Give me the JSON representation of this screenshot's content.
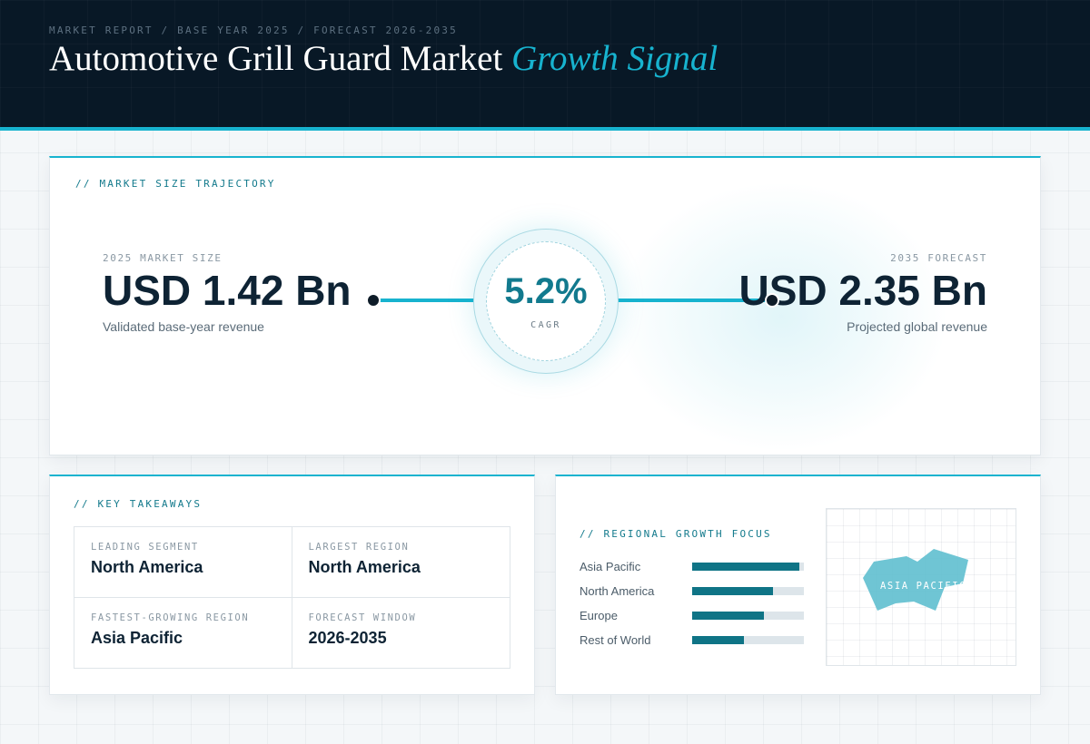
{
  "header": {
    "breadcrumb": "MARKET REPORT / BASE YEAR 2025 / FORECAST 2026-2035",
    "title_main": "Automotive Grill Guard Market",
    "title_accent": "Growth Signal"
  },
  "trajectory": {
    "section_label": "// MARKET SIZE TRAJECTORY",
    "start": {
      "caption": "2025 MARKET SIZE",
      "value": "USD 1.42 Bn",
      "note": "Validated base-year revenue"
    },
    "end": {
      "caption": "2035 FORECAST",
      "value": "USD 2.35 Bn",
      "note": "Projected global revenue"
    },
    "cagr": {
      "value": "5.2%",
      "label": "CAGR"
    }
  },
  "takeaways": {
    "section_label": "// KEY TAKEAWAYS",
    "cells": [
      {
        "label": "LEADING SEGMENT",
        "value": "North America"
      },
      {
        "label": "LARGEST REGION",
        "value": "North America"
      },
      {
        "label": "FASTEST-GROWING REGION",
        "value": "Asia Pacific"
      },
      {
        "label": "FORECAST WINDOW",
        "value": "2026-2035"
      }
    ]
  },
  "regional": {
    "section_label": "// REGIONAL GROWTH FOCUS",
    "regions": [
      {
        "name": "Asia Pacific",
        "share": 0.96
      },
      {
        "name": "North America",
        "share": 0.72
      },
      {
        "name": "Europe",
        "share": 0.64
      },
      {
        "name": "Rest of World",
        "share": 0.46
      }
    ],
    "map_label": "ASIA PACIFIC",
    "highlight_color": "#5fbfcf"
  },
  "colors": {
    "accent": "#17b3cf",
    "header_bg": "#081826",
    "bar_fill": "#0f7486",
    "text_dark": "#0e2334"
  }
}
